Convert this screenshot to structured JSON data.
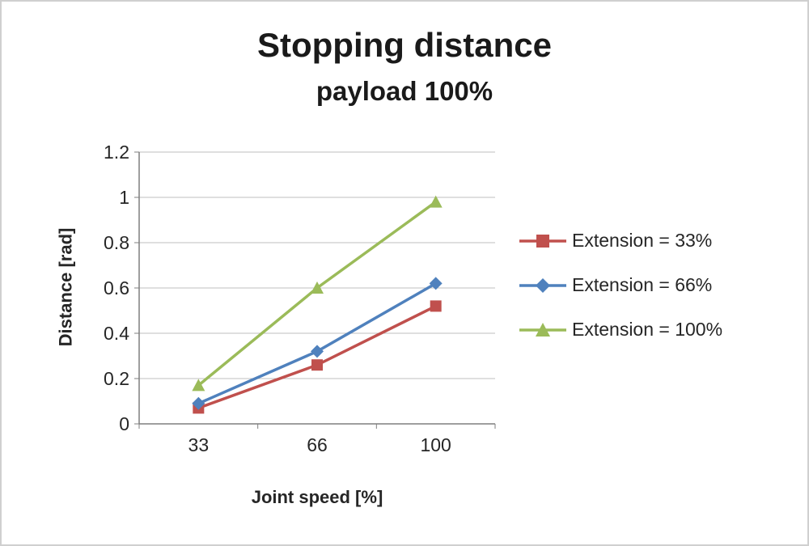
{
  "chart_data": {
    "type": "line",
    "title": "Stopping distance",
    "subtitle": "payload 100%",
    "xlabel": "Joint speed [%]",
    "ylabel": "Distance [rad]",
    "categories": [
      "33",
      "66",
      "100"
    ],
    "series": [
      {
        "name": "Extension = 33%",
        "values": [
          0.07,
          0.26,
          0.52
        ],
        "color": "#C0504D",
        "marker": "square"
      },
      {
        "name": "Extension = 66%",
        "values": [
          0.09,
          0.32,
          0.62
        ],
        "color": "#4F81BD",
        "marker": "diamond"
      },
      {
        "name": "Extension = 100%",
        "values": [
          0.17,
          0.6,
          0.98
        ],
        "color": "#9BBB59",
        "marker": "triangle"
      }
    ],
    "ylim": [
      0,
      1.2
    ],
    "ytick_step": 0.2,
    "grid": true,
    "legend_position": "right",
    "colors": {
      "gridline": "#bfbfbf",
      "axis": "#7f7f7f",
      "tick_text": "#262626"
    }
  }
}
